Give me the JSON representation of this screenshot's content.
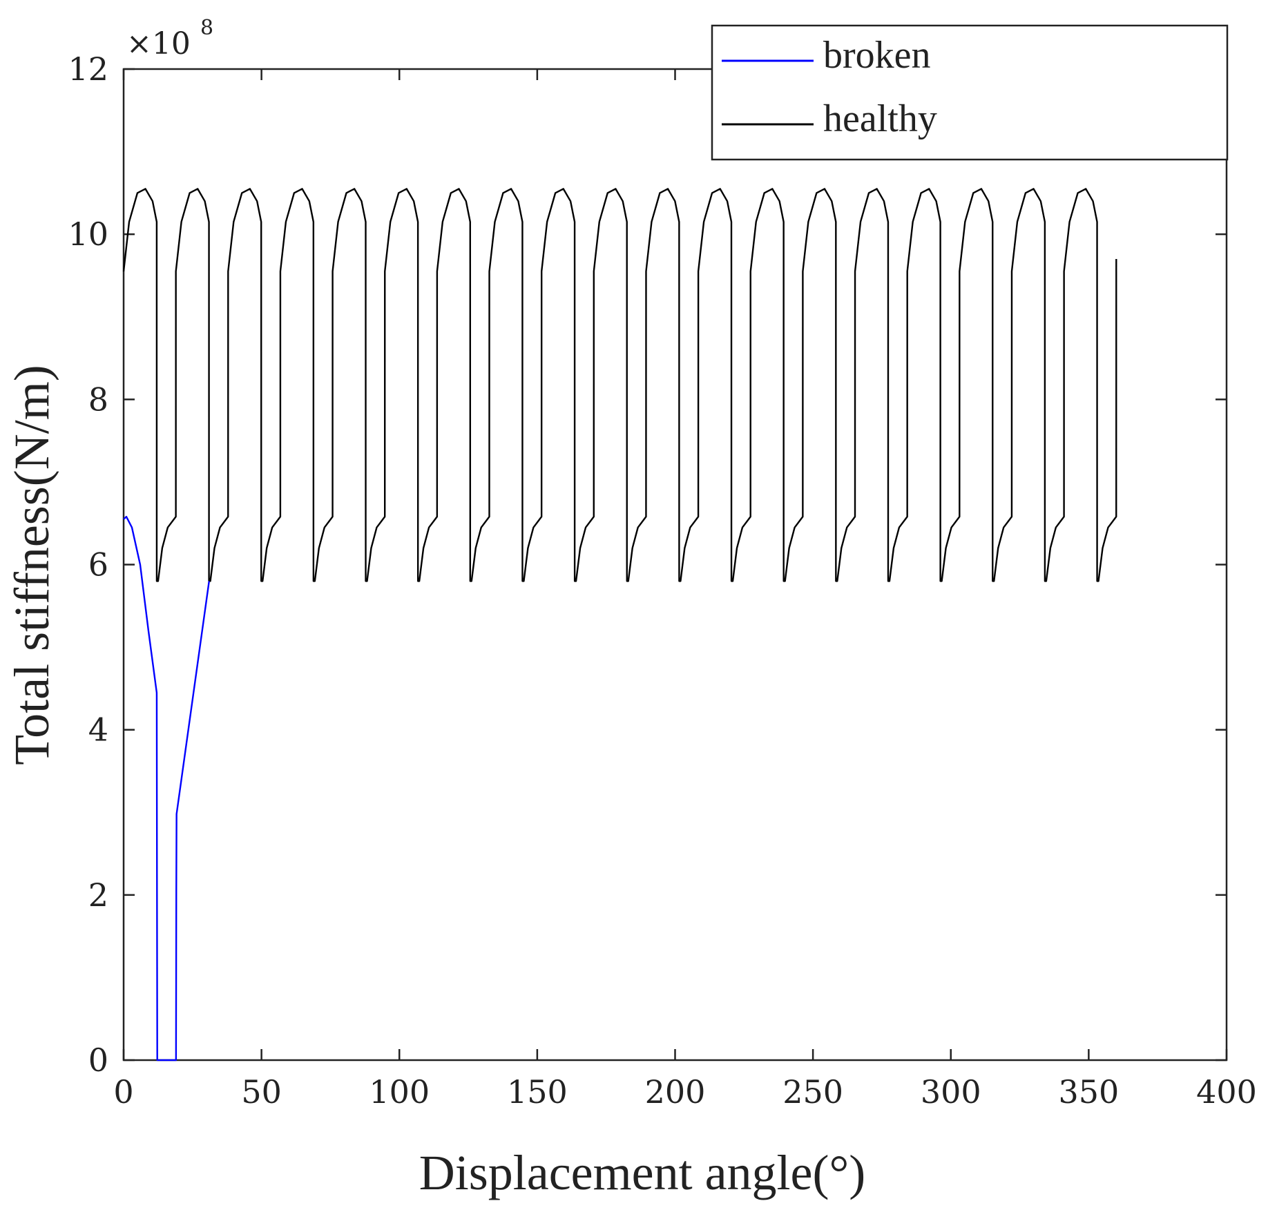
{
  "chart_data": {
    "type": "line",
    "title": "",
    "xlabel": "Displacement angle(°)",
    "ylabel": "Total stiffness(N/m)",
    "xlim": [
      0,
      400
    ],
    "ylim": [
      0,
      12
    ],
    "x_ticks": [
      0,
      50,
      100,
      150,
      200,
      250,
      300,
      350,
      400
    ],
    "y_ticks": [
      0,
      2,
      4,
      6,
      8,
      10,
      12
    ],
    "x_tick_labels": [
      "0",
      "50",
      "100",
      "150",
      "200",
      "250",
      "300",
      "350",
      "400"
    ],
    "y_tick_labels": [
      "0",
      "2",
      "4",
      "6",
      "8",
      "10",
      "12"
    ],
    "y_multiplier": {
      "base": "×10",
      "exponent": "8"
    },
    "grid": false,
    "legend_position": "top-right",
    "mesh_period_deg": 18.947,
    "series": [
      {
        "name": "healthy",
        "color": "#000000",
        "style": "periodic mesh stiffness (double-tooth / single-tooth alternation)",
        "x": [
          0,
          2,
          5,
          7.9,
          10.5,
          12.0,
          12.01,
          12.5,
          14,
          16,
          18.94,
          18.95
        ],
        "y": [
          9.55,
          10.15,
          10.5,
          10.55,
          10.4,
          10.15,
          5.8,
          5.8,
          6.2,
          6.45,
          6.58,
          9.55
        ],
        "period_repeats_until": 360,
        "end_point": [
          360,
          9.7
        ]
      },
      {
        "name": "broken",
        "color": "#0000ff",
        "x": [
          0,
          1,
          3,
          6,
          9,
          12,
          12.01,
          12.1,
          12.2,
          19.0,
          19.1,
          19.2,
          31.0
        ],
        "y": [
          6.55,
          6.58,
          6.45,
          6.0,
          5.2,
          4.45,
          4.4,
          2.05,
          0,
          0,
          2.05,
          2.98,
          5.8
        ]
      }
    ]
  },
  "legend": {
    "items": [
      {
        "label": "broken",
        "color": "#0000ff"
      },
      {
        "label": "healthy",
        "color": "#000000"
      }
    ]
  }
}
